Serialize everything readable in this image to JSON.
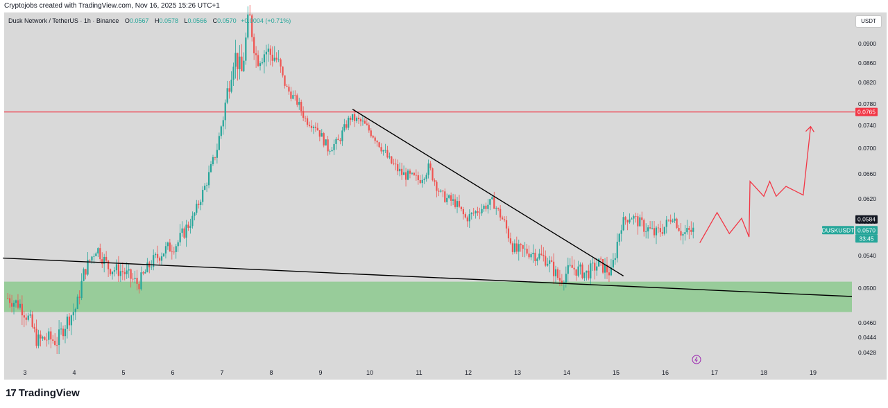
{
  "header": {
    "credit": "Cryptojobs created with TradingView.com, Nov 16, 2025 15:26 UTC+1"
  },
  "legend": {
    "symbol": "Dusk Network / TetherUS · 1h · Binance",
    "o_label": "O",
    "o_value": "0.0567",
    "h_label": "H",
    "h_value": "0.0578",
    "l_label": "L",
    "l_value": "0.0566",
    "c_label": "C",
    "c_value": "0.0570",
    "change": "+0.0004 (+0.71%)"
  },
  "currency_button": "USDT",
  "footer": {
    "logo_mark": "17",
    "brand": "TradingView"
  },
  "colors": {
    "background": "#d9d9d9",
    "up": "#26a69a",
    "down": "#ef5350",
    "resistance": "#f23645",
    "support_zone": "#81c784",
    "trendline": "#000000",
    "projection": "#f23645",
    "price_tag": "#26a69a",
    "last_tag": "#131722"
  },
  "chart_data": {
    "type": "candlestick",
    "title": "Dusk Network / TetherUS · 1h · Binance",
    "x_ticks": [
      "3",
      "4",
      "5",
      "6",
      "7",
      "8",
      "9",
      "10",
      "11",
      "12",
      "13",
      "14",
      "15",
      "16",
      "17",
      "18",
      "19"
    ],
    "y_ticks": [
      "0.0900",
      "0.0860",
      "0.0820",
      "0.0780",
      "0.0740",
      "0.0700",
      "0.0660",
      "0.0620",
      "0.0580",
      "0.0540",
      "0.0500",
      "0.0460",
      "0.0444",
      "0.0428"
    ],
    "y_tick_values": [
      0.09,
      0.086,
      0.082,
      0.078,
      0.074,
      0.07,
      0.066,
      0.062,
      0.058,
      0.054,
      0.05,
      0.046,
      0.0444,
      0.0428
    ],
    "price_tags": [
      {
        "label": "0.0765",
        "value": 0.0765,
        "kind": "resistance"
      },
      {
        "label": "0.0584",
        "value": 0.0584,
        "kind": "last"
      },
      {
        "label": "DUSKUSDT",
        "value": 0.057,
        "kind": "symbol"
      },
      {
        "label": "0.0570",
        "value": 0.057,
        "kind": "price"
      },
      {
        "label": "33:45",
        "value": 0.057,
        "kind": "countdown"
      }
    ],
    "resistance_level": 0.0765,
    "support_zone": [
      0.0472,
      0.0508
    ],
    "close_path": [
      {
        "x": 2.65,
        "y": 0.0488
      },
      {
        "x": 2.9,
        "y": 0.048
      },
      {
        "x": 3.1,
        "y": 0.0462
      },
      {
        "x": 3.25,
        "y": 0.044
      },
      {
        "x": 3.45,
        "y": 0.0443
      },
      {
        "x": 3.65,
        "y": 0.044
      },
      {
        "x": 3.85,
        "y": 0.0462
      },
      {
        "x": 4.05,
        "y": 0.0478
      },
      {
        "x": 4.2,
        "y": 0.052
      },
      {
        "x": 4.45,
        "y": 0.055
      },
      {
        "x": 4.7,
        "y": 0.0525
      },
      {
        "x": 5.0,
        "y": 0.052
      },
      {
        "x": 5.3,
        "y": 0.0505
      },
      {
        "x": 5.55,
        "y": 0.053
      },
      {
        "x": 5.8,
        "y": 0.0545
      },
      {
        "x": 6.1,
        "y": 0.0555
      },
      {
        "x": 6.4,
        "y": 0.0585
      },
      {
        "x": 6.7,
        "y": 0.065
      },
      {
        "x": 6.9,
        "y": 0.07
      },
      {
        "x": 7.05,
        "y": 0.077
      },
      {
        "x": 7.25,
        "y": 0.088
      },
      {
        "x": 7.4,
        "y": 0.084
      },
      {
        "x": 7.55,
        "y": 0.096
      },
      {
        "x": 7.7,
        "y": 0.087
      },
      {
        "x": 7.9,
        "y": 0.0885
      },
      {
        "x": 8.1,
        "y": 0.087
      },
      {
        "x": 8.3,
        "y": 0.081
      },
      {
        "x": 8.55,
        "y": 0.078
      },
      {
        "x": 8.7,
        "y": 0.075
      },
      {
        "x": 8.9,
        "y": 0.074
      },
      {
        "x": 9.15,
        "y": 0.07
      },
      {
        "x": 9.35,
        "y": 0.071
      },
      {
        "x": 9.6,
        "y": 0.0755
      },
      {
        "x": 9.85,
        "y": 0.0745
      },
      {
        "x": 10.1,
        "y": 0.072
      },
      {
        "x": 10.4,
        "y": 0.068
      },
      {
        "x": 10.65,
        "y": 0.066
      },
      {
        "x": 11.0,
        "y": 0.065
      },
      {
        "x": 11.2,
        "y": 0.067
      },
      {
        "x": 11.45,
        "y": 0.0625
      },
      {
        "x": 11.75,
        "y": 0.0612
      },
      {
        "x": 11.95,
        "y": 0.0585
      },
      {
        "x": 12.2,
        "y": 0.06
      },
      {
        "x": 12.5,
        "y": 0.0615
      },
      {
        "x": 12.75,
        "y": 0.0575
      },
      {
        "x": 12.95,
        "y": 0.0545
      },
      {
        "x": 13.25,
        "y": 0.0545
      },
      {
        "x": 13.6,
        "y": 0.0535
      },
      {
        "x": 13.85,
        "y": 0.051
      },
      {
        "x": 14.1,
        "y": 0.0525
      },
      {
        "x": 14.4,
        "y": 0.0518
      },
      {
        "x": 14.65,
        "y": 0.053
      },
      {
        "x": 14.9,
        "y": 0.0518
      },
      {
        "x": 15.1,
        "y": 0.0578
      },
      {
        "x": 15.3,
        "y": 0.059
      },
      {
        "x": 15.55,
        "y": 0.0575
      },
      {
        "x": 15.8,
        "y": 0.0565
      },
      {
        "x": 16.0,
        "y": 0.0575
      },
      {
        "x": 16.15,
        "y": 0.059
      },
      {
        "x": 16.35,
        "y": 0.0565
      },
      {
        "x": 16.6,
        "y": 0.057
      }
    ],
    "trendlines": [
      {
        "name": "descending",
        "from": {
          "x": 9.65,
          "y": 0.077
        },
        "to": {
          "x": 15.15,
          "y": 0.0515
        }
      },
      {
        "name": "support",
        "from": {
          "x": 2.55,
          "y": 0.0537
        },
        "to": {
          "x": 19.8,
          "y": 0.049
        }
      }
    ],
    "projection": [
      {
        "x": 16.7,
        "y": 0.0555
      },
      {
        "x": 17.05,
        "y": 0.0596
      },
      {
        "x": 17.3,
        "y": 0.0566
      },
      {
        "x": 17.55,
        "y": 0.0586
      },
      {
        "x": 17.7,
        "y": 0.0562
      },
      {
        "x": 17.72,
        "y": 0.0648
      },
      {
        "x": 18.0,
        "y": 0.0624
      },
      {
        "x": 18.12,
        "y": 0.0648
      },
      {
        "x": 18.25,
        "y": 0.0624
      },
      {
        "x": 18.45,
        "y": 0.064
      },
      {
        "x": 18.8,
        "y": 0.0626
      },
      {
        "x": 18.95,
        "y": 0.0738
      }
    ],
    "grid": false
  }
}
